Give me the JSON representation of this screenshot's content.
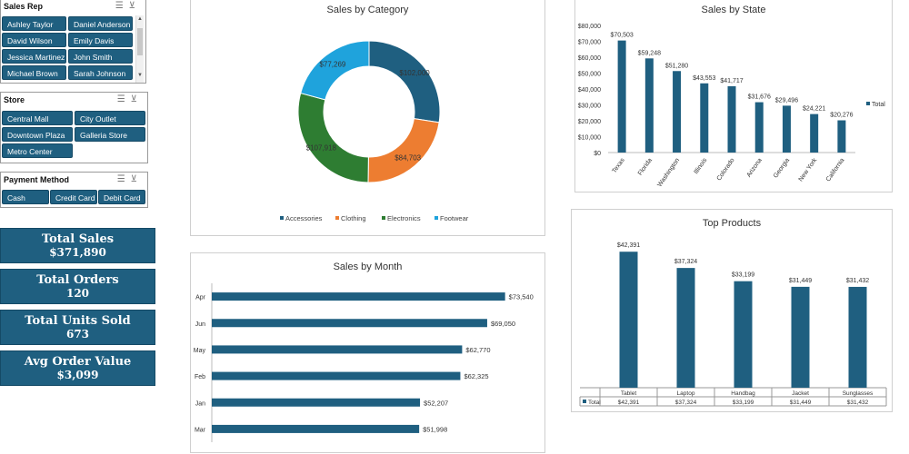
{
  "slicers": {
    "sales_rep": {
      "title": "Sales Rep",
      "items": [
        "Ashley Taylor",
        "Daniel Anderson",
        "David Wilson",
        "Emily Davis",
        "Jessica Martinez",
        "John Smith",
        "Michael Brown",
        "Sarah Johnson"
      ]
    },
    "store": {
      "title": "Store",
      "items": [
        "Central Mall",
        "City Outlet",
        "Downtown Plaza",
        "Galleria Store",
        "Metro Center"
      ]
    },
    "payment": {
      "title": "Payment Method",
      "items": [
        "Cash",
        "Credit Card",
        "Debit Card"
      ]
    },
    "icons": [
      "multi-select-icon",
      "clear-filter-icon"
    ]
  },
  "kpis": [
    {
      "label": "Total Sales",
      "value": "$371,890"
    },
    {
      "label": "Total Orders",
      "value": "120"
    },
    {
      "label": "Total Units Sold",
      "value": "673"
    },
    {
      "label": "Avg Order Value",
      "value": "$3,099"
    }
  ],
  "colors": {
    "primary": "#1f5f80",
    "orange": "#ed7d31",
    "green": "#2e7d32",
    "lightblue": "#1fa3dc"
  },
  "chart_data": [
    {
      "type": "pie",
      "variant": "donut",
      "title": "Sales by Category",
      "categories": [
        "Accessories",
        "Clothing",
        "Electronics",
        "Footwear"
      ],
      "values": [
        102000,
        84703,
        107918,
        77269
      ],
      "labels": [
        "$102,000",
        "$84,703",
        "$107,918",
        "$77,269"
      ],
      "colors": [
        "#1f5f80",
        "#ed7d31",
        "#2e7d32",
        "#1fa3dc"
      ],
      "legend": "bottom"
    },
    {
      "type": "bar",
      "title": "Sales by State",
      "categories": [
        "Texas",
        "Florida",
        "Washington",
        "Illinois",
        "Colorado",
        "Arizona",
        "Georgia",
        "New York",
        "California"
      ],
      "values": [
        70503,
        59248,
        51280,
        43553,
        41717,
        31676,
        29496,
        24221,
        20276
      ],
      "labels": [
        "$70,503",
        "$59,248",
        "$51,280",
        "$43,553",
        "$41,717",
        "$31,676",
        "$29,496",
        "$24,221",
        "$20,276"
      ],
      "yticks": [
        "$0",
        "$10,000",
        "$20,000",
        "$30,000",
        "$40,000",
        "$50,000",
        "$60,000",
        "$70,000",
        "$80,000"
      ],
      "ylim": [
        0,
        80000
      ],
      "legend": "right",
      "series_name": "Total",
      "color": "#1f5f80"
    },
    {
      "type": "bar",
      "orientation": "horizontal",
      "title": "Sales by Month",
      "categories": [
        "Apr",
        "Jun",
        "May",
        "Feb",
        "Jan",
        "Mar"
      ],
      "values": [
        73540,
        69050,
        62770,
        62325,
        52207,
        51998
      ],
      "labels": [
        "$73,540",
        "$69,050",
        "$62,770",
        "$62,325",
        "$52,207",
        "$51,998"
      ],
      "xlim": [
        0,
        80000
      ],
      "color": "#1f5f80"
    },
    {
      "type": "bar",
      "title": "Top  Products",
      "categories": [
        "Tablet",
        "Laptop",
        "Handbag",
        "Jacket",
        "Sunglasses"
      ],
      "values": [
        42391,
        37324,
        33199,
        31449,
        31432
      ],
      "labels": [
        "$42,391",
        "$37,324",
        "$33,199",
        "$31,449",
        "$31,432"
      ],
      "table_row_label": "Total",
      "ylim": [
        0,
        45000
      ],
      "color": "#1f5f80"
    }
  ]
}
